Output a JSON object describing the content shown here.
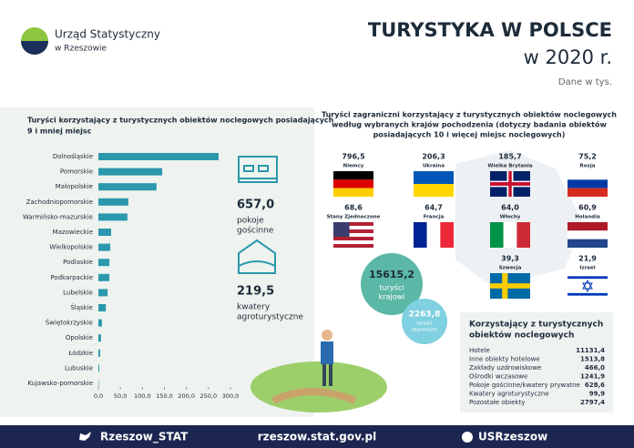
{
  "header": {
    "org": "Urząd Statystyczny",
    "org_sub": "w Rzeszowie",
    "title": "TURYSTYKA W POLSCE",
    "year": "w 2020 r.",
    "unit": "Dane w tys."
  },
  "chart_data": {
    "type": "hbar",
    "title": "Turyści korzystający z turystycznych obiektów noclegowych posiadających 9 i mniej miejsc",
    "categories": [
      "Dolnośląskie",
      "Pomorskie",
      "Małopolskie",
      "Zachodniopomorskie",
      "Warmińsko-mazurskie",
      "Mazowieckie",
      "Wielkopolskie",
      "Podlaskie",
      "Podkarpackie",
      "Lubelskie",
      "Śląskie",
      "Świętokrzyskie",
      "Opolskie",
      "Łódzkie",
      "Lubuskie",
      "Kujawsko-pomorskie"
    ],
    "values": [
      273,
      145,
      132,
      68,
      66,
      29,
      27,
      25,
      25,
      21,
      17,
      8,
      6,
      4,
      2,
      1
    ],
    "color": "#2b98ad",
    "xlim": [
      0,
      300
    ],
    "xticks": [
      {
        "value": 0,
        "label": "0,0"
      },
      {
        "value": 50,
        "label": "50,0"
      },
      {
        "value": 100,
        "label": "100,0"
      },
      {
        "value": 150,
        "label": "150,0"
      },
      {
        "value": 200,
        "label": "200,0"
      },
      {
        "value": 250,
        "label": "250,0"
      },
      {
        "value": 300,
        "label": "300,0"
      }
    ]
  },
  "stats": {
    "rooms_value": "657,0",
    "rooms_label": "pokoje gościnne",
    "agro_value": "219,5",
    "agro_label": "kwatery agroturystyczne",
    "domestic_value": "15615,2",
    "domestic_label": "turyści krajowi",
    "foreign_value": "2263,8",
    "foreign_label": "turyści zagraniczni"
  },
  "foreign": {
    "title": "Turyści zagraniczni korzystający z turystycznych obiektów noclegowych według wybranych krajów pochodzenia (dotyczy badania obiektów posiadających 10 i więcej miejsc noclegowych)",
    "countries": [
      {
        "name": "Niemcy",
        "value": "796,5"
      },
      {
        "name": "Ukraina",
        "value": "206,3"
      },
      {
        "name": "Wielka Brytania",
        "value": "185,7"
      },
      {
        "name": "Rosja",
        "value": "75,2"
      },
      {
        "name": "Stany Zjednoczone",
        "value": "68,6"
      },
      {
        "name": "Francja",
        "value": "64,7"
      },
      {
        "name": "Włochy",
        "value": "64,0"
      },
      {
        "name": "Holandia",
        "value": "60,9"
      },
      {
        "name": "Szwecja",
        "value": "39,3"
      },
      {
        "name": "Izrael",
        "value": "21,9"
      }
    ]
  },
  "table": {
    "title": "Korzystający z turystycznych obiektów noclegowych",
    "rows": [
      [
        "Hotele",
        "11131,4"
      ],
      [
        "Inne obiekty hotelowe",
        "1513,8"
      ],
      [
        "Zakłady uzdrowiskowe",
        "466,0"
      ],
      [
        "Ośrodki wczasowe",
        "1241,9"
      ],
      [
        "Pokoje gościnne/kwatery prywatne",
        "628,6"
      ],
      [
        "Kwatery agroturystyczne",
        "99,9"
      ],
      [
        "Pozostałe obiekty",
        "2797,4"
      ]
    ]
  },
  "footer": {
    "twitter": "Rzeszow_STAT",
    "site": "rzeszow.stat.gov.pl",
    "facebook": "USRzeszow"
  }
}
